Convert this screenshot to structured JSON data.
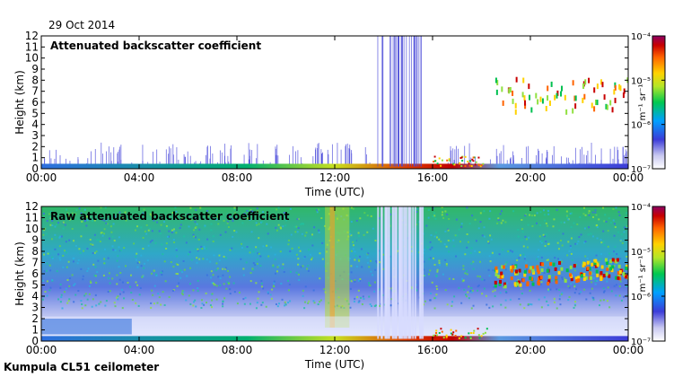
{
  "date_label": "29 Oct 2014",
  "footer_label": "Kumpula CL51 ceilometer",
  "chart_data": [
    {
      "type": "heatmap",
      "title": "Attenuated backscatter coefficient",
      "xlabel": "Time (UTC)",
      "ylabel": "Height (km)",
      "x_ticks": [
        "00:00",
        "04:00",
        "08:00",
        "12:00",
        "16:00",
        "20:00",
        "00:00"
      ],
      "x_range_hours": [
        0,
        24
      ],
      "y_ticks": [
        "0",
        "1",
        "2",
        "3",
        "4",
        "5",
        "6",
        "7",
        "8",
        "9",
        "10",
        "11",
        "12"
      ],
      "ylim": [
        0,
        12
      ],
      "colorbar": {
        "scale": "log",
        "label": "m⁻¹ sr⁻¹",
        "ticks": [
          "10⁻⁴",
          "10⁻⁵",
          "10⁻⁶",
          "10⁻⁷"
        ],
        "range": [
          1e-07,
          0.0001
        ]
      },
      "features": [
        {
          "name": "boundary layer",
          "hours": [
            0,
            24
          ],
          "height_km": [
            0,
            0.5
          ]
        },
        {
          "name": "precipitation streaks",
          "hours": [
            13.7,
            15.6
          ],
          "height_km": [
            0,
            12
          ]
        },
        {
          "name": "cloud layer",
          "hours": [
            18.5,
            24
          ],
          "height_km": [
            5,
            8
          ]
        }
      ]
    },
    {
      "type": "heatmap",
      "title": "Raw attenuated backscatter coefficient",
      "xlabel": "Time (UTC)",
      "ylabel": "Height (km)",
      "x_ticks": [
        "00:00",
        "04:00",
        "08:00",
        "12:00",
        "16:00",
        "20:00",
        "00:00"
      ],
      "x_range_hours": [
        0,
        24
      ],
      "y_ticks": [
        "0",
        "1",
        "2",
        "3",
        "4",
        "5",
        "6",
        "7",
        "8",
        "9",
        "10",
        "11",
        "12"
      ],
      "ylim": [
        0,
        12
      ],
      "colorbar": {
        "scale": "log",
        "label": "m⁻¹ sr⁻¹",
        "ticks": [
          "10⁻⁴",
          "10⁻⁵",
          "10⁻⁶",
          "10⁻⁷"
        ],
        "range": [
          1e-07,
          0.0001
        ]
      },
      "features": [
        {
          "name": "noise background",
          "hours": [
            0,
            24
          ],
          "height_km": [
            3,
            12
          ]
        },
        {
          "name": "precipitation streaks",
          "hours": [
            13.7,
            15.6
          ],
          "height_km": [
            0,
            12
          ]
        },
        {
          "name": "cloud layer",
          "hours": [
            18.5,
            24
          ],
          "height_km": [
            4.5,
            7
          ]
        }
      ]
    }
  ]
}
